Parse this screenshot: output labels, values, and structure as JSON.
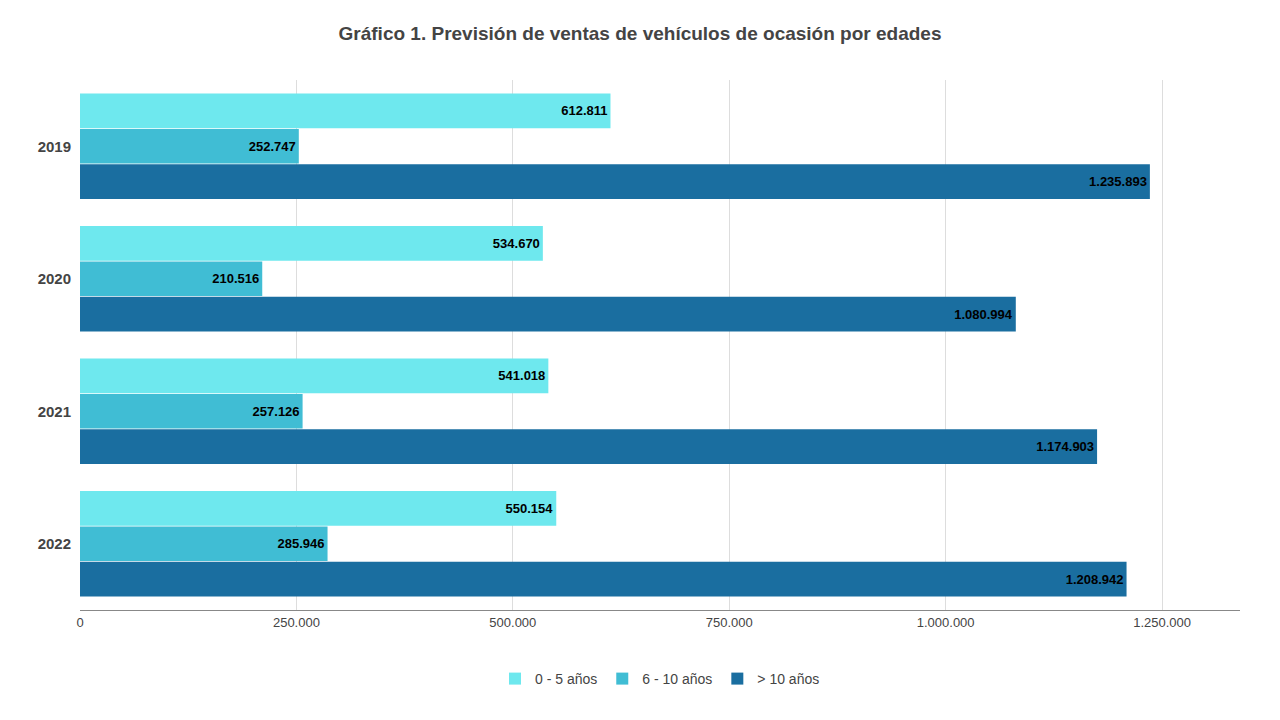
{
  "chart_data": {
    "type": "bar",
    "orientation": "horizontal",
    "title": "Gráfico 1. Previsión de ventas de vehículos de ocasión por edades",
    "categories": [
      "2022",
      "2021",
      "2020",
      "2019"
    ],
    "series": [
      {
        "name": "0 - 5 años",
        "color": "#6EE8EE",
        "values": [
          550154,
          541018,
          534670,
          612811
        ],
        "value_labels": [
          "550.154",
          "541.018",
          "534.670",
          "612.811"
        ]
      },
      {
        "name": "6 - 10 años",
        "color": "#40BDD4",
        "values": [
          285946,
          257126,
          210516,
          252747
        ],
        "value_labels": [
          "285.946",
          "257.126",
          "210.516",
          "252.747"
        ]
      },
      {
        "name": "> 10 años",
        "color": "#1A6EA0",
        "values": [
          1208942,
          1174903,
          1080994,
          1235893
        ],
        "value_labels": [
          "1.208.942",
          "1.174.903",
          "1.080.994",
          "1.235.893"
        ]
      }
    ],
    "xlim": [
      0,
      1340000
    ],
    "xticks": [
      0,
      {
        "value": 250000,
        "label": "250.000"
      },
      {
        "value": 500000,
        "label": "500.000"
      },
      {
        "value": 750000,
        "label": "750.000"
      },
      {
        "value": 1000000,
        "label": "1.000.000"
      },
      {
        "value": 1250000,
        "label": "1.250.000"
      }
    ],
    "grid": "x",
    "legend": "bottom",
    "data_labels": true
  }
}
